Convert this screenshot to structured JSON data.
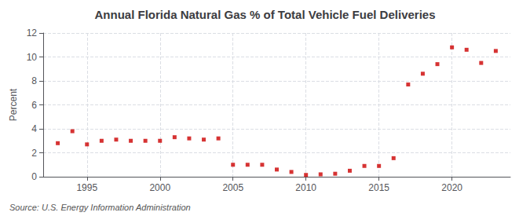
{
  "chart_data": {
    "type": "scatter",
    "title": "Annual Florida Natural Gas % of Total Vehicle Fuel Deliveries",
    "y_label": "Percent",
    "annotation": "Source: U.S. Energy Information Administration",
    "x": [
      1993,
      1994,
      1995,
      1996,
      1997,
      1998,
      1999,
      2000,
      2001,
      2002,
      2003,
      2004,
      2005,
      2006,
      2007,
      2008,
      2009,
      2010,
      2011,
      2012,
      2013,
      2014,
      2015,
      2016,
      2017,
      2018,
      2019,
      2020,
      2021,
      2022,
      2023
    ],
    "values": [
      2.8,
      3.8,
      2.7,
      3.0,
      3.1,
      3.0,
      3.0,
      3.0,
      3.3,
      3.2,
      3.1,
      3.2,
      1.0,
      1.0,
      1.0,
      0.6,
      0.4,
      0.15,
      0.2,
      0.25,
      0.5,
      0.9,
      0.9,
      1.55,
      7.7,
      8.6,
      9.4,
      10.8,
      10.6,
      9.5,
      10.5
    ],
    "color": "#cc0000",
    "marker": "square",
    "xlim": [
      1992.0,
      2024.0
    ],
    "xticks": [
      1995,
      2000,
      2005,
      2010,
      2015,
      2020
    ],
    "ylim": [
      0,
      12
    ],
    "yticks": [
      0,
      2,
      4,
      6,
      8,
      10,
      12
    ],
    "grid": true
  }
}
